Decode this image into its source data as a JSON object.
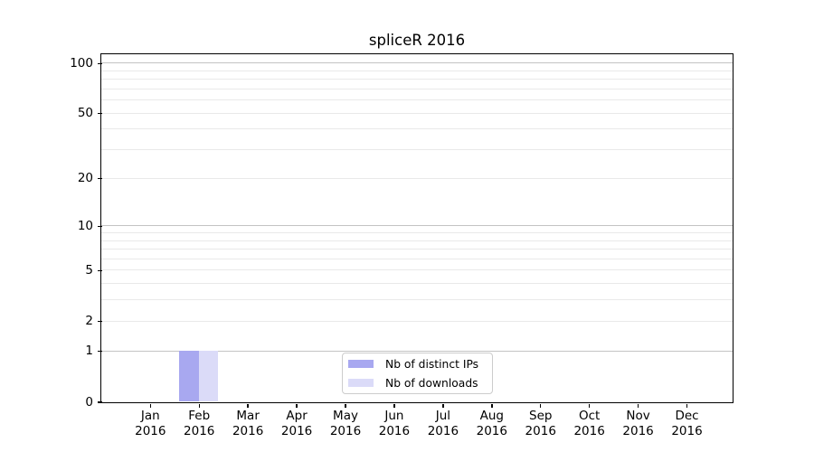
{
  "chart_data": {
    "type": "bar",
    "title": "spliceR 2016",
    "categories": [
      "Jan",
      "Feb",
      "Mar",
      "Apr",
      "May",
      "Jun",
      "Jul",
      "Aug",
      "Sep",
      "Oct",
      "Nov",
      "Dec"
    ],
    "year": "2016",
    "series": [
      {
        "name": "Nb of distinct IPs",
        "color": "#a8a8f0",
        "values": [
          0,
          1,
          0,
          0,
          0,
          0,
          0,
          0,
          0,
          0,
          0,
          0
        ]
      },
      {
        "name": "Nb of downloads",
        "color": "#dbdbf8",
        "values": [
          0,
          1,
          0,
          0,
          0,
          0,
          0,
          0,
          0,
          0,
          0,
          0
        ]
      }
    ],
    "y_axis": {
      "scale": "log10(v+1)",
      "tick_values": [
        0,
        1,
        2,
        5,
        10,
        20,
        50,
        100
      ],
      "tick_labels": [
        "0",
        "1",
        "2",
        "5",
        "10",
        "20",
        "50",
        "100"
      ],
      "major_gridlines": [
        1,
        10,
        100
      ],
      "minor_gridlines": [
        2,
        3,
        4,
        5,
        6,
        7,
        8,
        9,
        20,
        30,
        40,
        50,
        60,
        70,
        80,
        90
      ],
      "top_value": 113
    },
    "x_axis": {
      "tick_count": 12
    },
    "legend": {
      "position": "bottom-center",
      "entries": [
        "Nb of distinct IPs",
        "Nb of downloads"
      ]
    },
    "colors": {
      "major_grid": "#c3c3c3",
      "minor_grid": "#e9e9e9",
      "spine": "#000000",
      "background": "#ffffff",
      "legend_border": "#cccccc"
    }
  }
}
